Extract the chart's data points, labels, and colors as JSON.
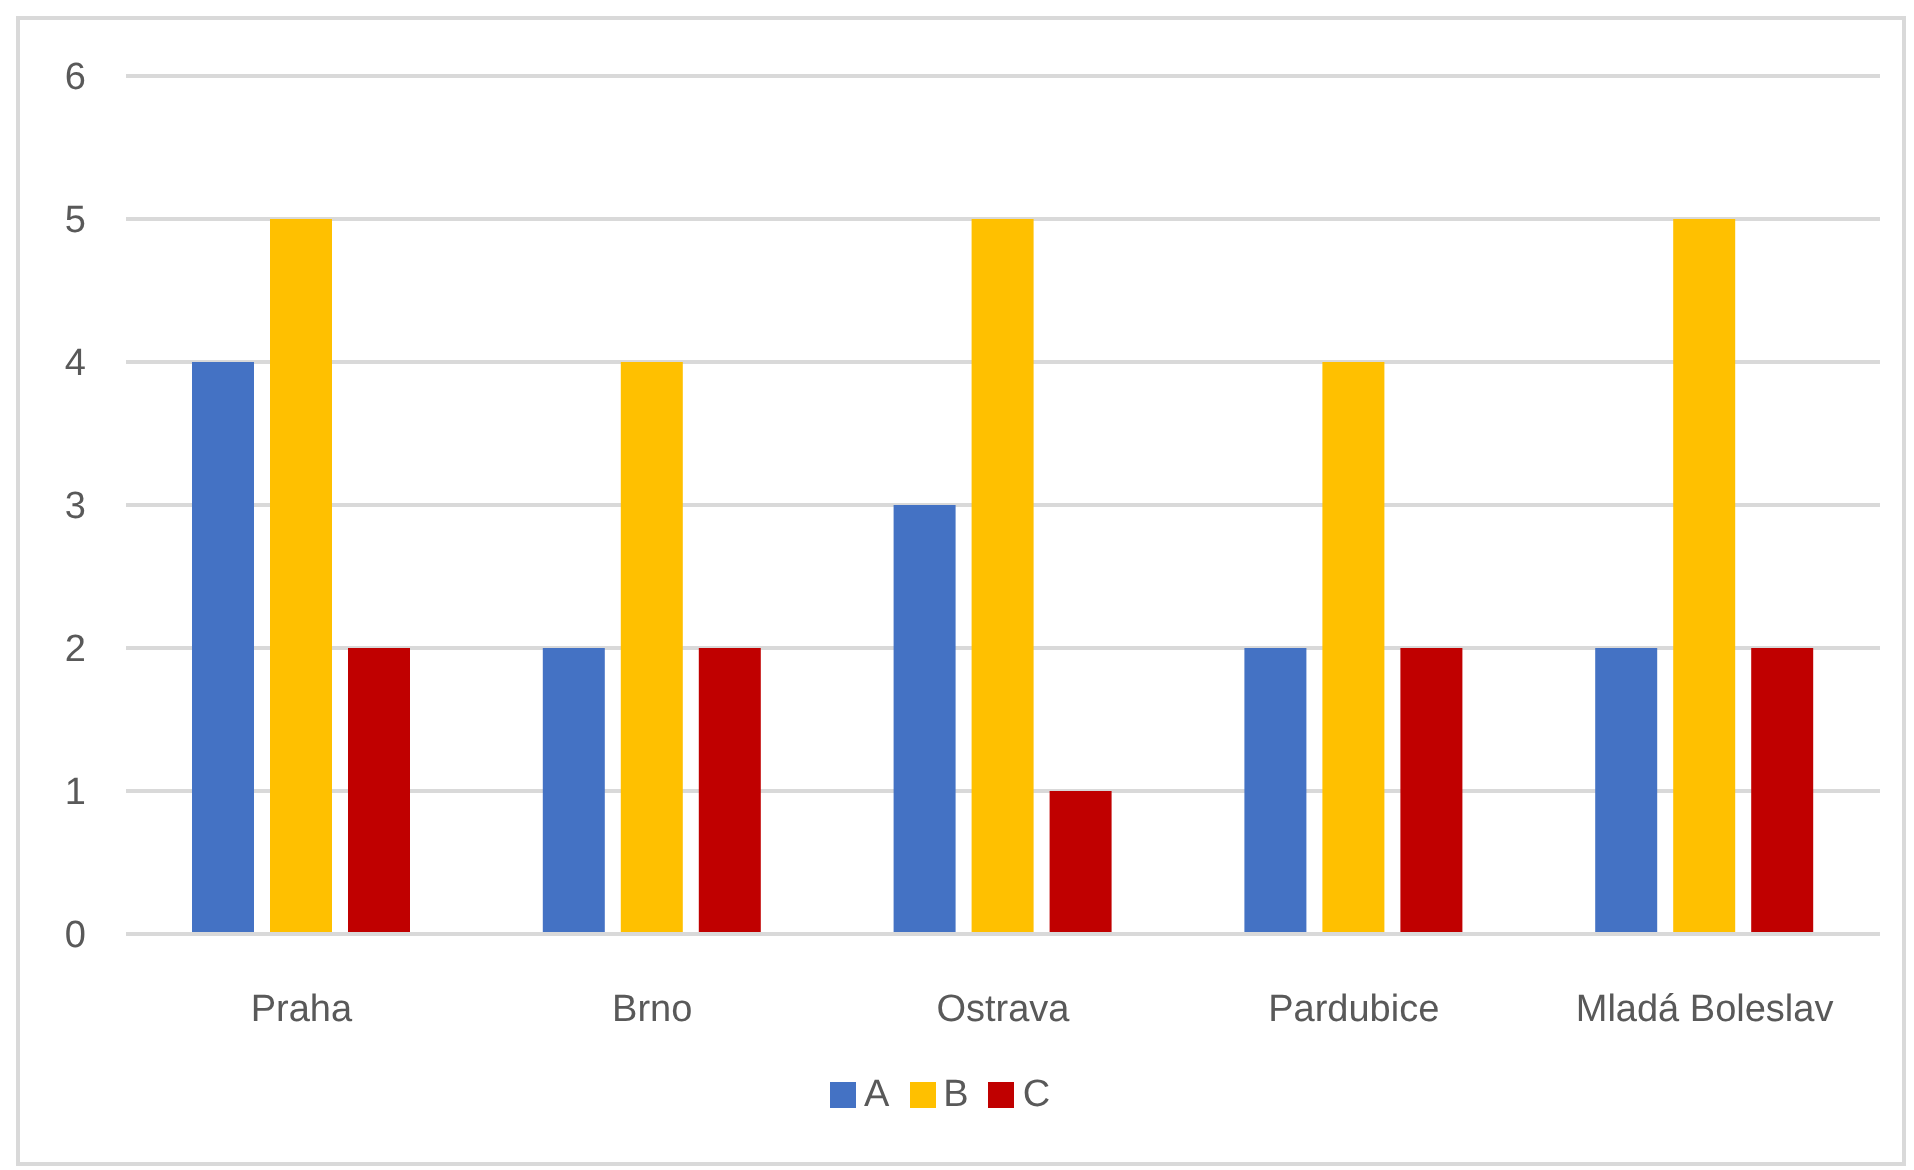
{
  "chart_data": {
    "type": "bar",
    "categories": [
      "Praha",
      "Brno",
      "Ostrava",
      "Pardubice",
      "Mladá Boleslav"
    ],
    "series": [
      {
        "name": "A",
        "color": "#4472c4",
        "values": [
          4,
          2,
          3,
          2,
          2
        ]
      },
      {
        "name": "B",
        "color": "#ffc000",
        "values": [
          5,
          4,
          5,
          4,
          5
        ]
      },
      {
        "name": "C",
        "color": "#c00000",
        "values": [
          2,
          2,
          1,
          2,
          2
        ]
      }
    ],
    "ylim": [
      0,
      6
    ],
    "yticks": [
      0,
      1,
      2,
      3,
      4,
      5,
      6
    ],
    "grid": "y",
    "legend": "bottom"
  }
}
